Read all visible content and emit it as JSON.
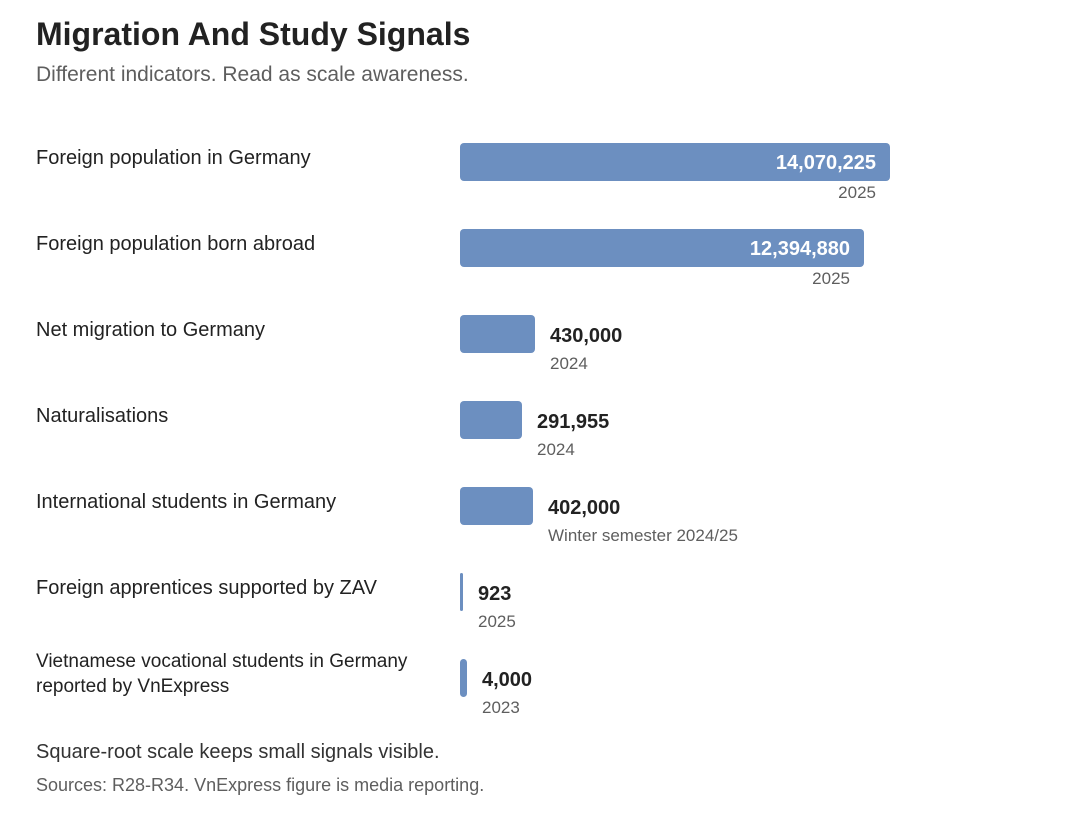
{
  "title": "Migration And Study Signals",
  "subtitle": "Different indicators. Read as scale awareness.",
  "footnote": "Square-root scale keeps small signals visible.",
  "sources": "Sources: R28-R34. VnExpress figure is media reporting.",
  "colors": {
    "bar": "#6c8fc0",
    "text": "#222222",
    "muted": "#5e5e5e"
  },
  "chart_data": {
    "type": "bar",
    "orientation": "horizontal",
    "scale": "sqrt",
    "title": "Migration And Study Signals",
    "subtitle": "Different indicators. Read as scale awareness.",
    "categories": [
      "Foreign population in Germany",
      "Foreign population born abroad",
      "Net migration to Germany",
      "Naturalisations",
      "International students in Germany",
      "Foreign apprentices supported by ZAV",
      "Vietnamese vocational students in Germany reported by VnExpress"
    ],
    "values": [
      14070225,
      12394880,
      430000,
      291955,
      402000,
      923,
      4000
    ],
    "value_labels": [
      "14,070,225",
      "12,394,880",
      "430,000",
      "291,955",
      "402,000",
      "923",
      "4,000"
    ],
    "notes": [
      "2025",
      "2025",
      "2024",
      "2024",
      "Winter semester 2024/25",
      "2025",
      "2023"
    ],
    "xlim": [
      0,
      14070225
    ]
  }
}
